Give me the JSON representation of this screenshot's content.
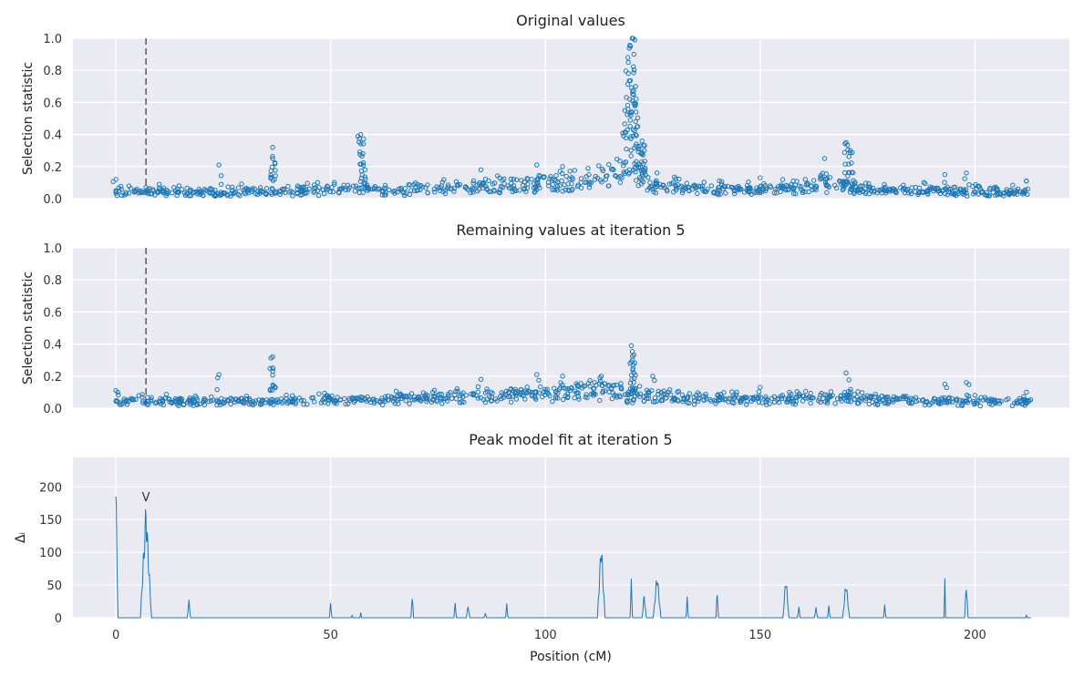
{
  "chart_data": [
    {
      "type": "scatter",
      "title": "Original values",
      "ylabel": "Selection statistic",
      "xlabel": "",
      "xlim": [
        -10,
        222
      ],
      "ylim": [
        0,
        1.0
      ],
      "yticks": [
        "0.0",
        "0.2",
        "0.4",
        "0.6",
        "0.8",
        "1.0"
      ],
      "ytick_values": [
        0,
        0.2,
        0.4,
        0.6,
        0.8,
        1.0
      ],
      "xtick_values": [
        0,
        50,
        100,
        150,
        200
      ],
      "show_xtick_labels": false,
      "marker_line_x": 7,
      "grid": true,
      "color": "#1f77b4",
      "baseline": [
        [
          0,
          0.03
        ],
        [
          5,
          0.03
        ],
        [
          10,
          0.03
        ],
        [
          20,
          0.03
        ],
        [
          30,
          0.03
        ],
        [
          40,
          0.035
        ],
        [
          50,
          0.04
        ],
        [
          54,
          0.05
        ],
        [
          58,
          0.04
        ],
        [
          65,
          0.035
        ],
        [
          75,
          0.05
        ],
        [
          85,
          0.06
        ],
        [
          95,
          0.07
        ],
        [
          105,
          0.09
        ],
        [
          115,
          0.12
        ],
        [
          118,
          0.15
        ],
        [
          122,
          0.12
        ],
        [
          125,
          0.06
        ],
        [
          135,
          0.05
        ],
        [
          150,
          0.04
        ],
        [
          160,
          0.06
        ],
        [
          165,
          0.08
        ],
        [
          170,
          0.06
        ],
        [
          175,
          0.04
        ],
        [
          190,
          0.035
        ],
        [
          205,
          0.03
        ],
        [
          213,
          0.03
        ]
      ],
      "peaks": [
        [
          0,
          0.12
        ],
        [
          7,
          0.07
        ],
        [
          24,
          0.21
        ],
        [
          36.5,
          0.32
        ],
        [
          36.5,
          0.25
        ],
        [
          57,
          0.4
        ],
        [
          57.5,
          0.28
        ],
        [
          58,
          0.18
        ],
        [
          85,
          0.18
        ],
        [
          98,
          0.21
        ],
        [
          104,
          0.2
        ],
        [
          118.5,
          0.55
        ],
        [
          119.3,
          0.85
        ],
        [
          119.8,
          0.95
        ],
        [
          120.2,
          1.0
        ],
        [
          120.6,
          0.9
        ],
        [
          121,
          0.7
        ],
        [
          121.5,
          0.45
        ],
        [
          122.5,
          0.36
        ],
        [
          123,
          0.3
        ],
        [
          126,
          0.16
        ],
        [
          150,
          0.13
        ],
        [
          165,
          0.25
        ],
        [
          170,
          0.35
        ],
        [
          171,
          0.3
        ],
        [
          193,
          0.15
        ],
        [
          198,
          0.16
        ],
        [
          212,
          0.11
        ]
      ]
    },
    {
      "type": "scatter",
      "title": "Remaining values at iteration 5",
      "ylabel": "Selection statistic",
      "xlabel": "",
      "xlim": [
        -10,
        222
      ],
      "ylim": [
        0,
        1.0
      ],
      "yticks": [
        "0.0",
        "0.2",
        "0.4",
        "0.6",
        "0.8",
        "1.0"
      ],
      "ytick_values": [
        0,
        0.2,
        0.4,
        0.6,
        0.8,
        1.0
      ],
      "xtick_values": [
        0,
        50,
        100,
        150,
        200
      ],
      "show_xtick_labels": false,
      "marker_line_x": 7,
      "grid": true,
      "color": "#1f77b4",
      "baseline": [
        [
          0,
          0.03
        ],
        [
          10,
          0.03
        ],
        [
          20,
          0.03
        ],
        [
          30,
          0.03
        ],
        [
          40,
          0.035
        ],
        [
          50,
          0.04
        ],
        [
          60,
          0.035
        ],
        [
          75,
          0.05
        ],
        [
          85,
          0.06
        ],
        [
          95,
          0.07
        ],
        [
          105,
          0.08
        ],
        [
          115,
          0.09
        ],
        [
          120,
          0.06
        ],
        [
          125,
          0.07
        ],
        [
          135,
          0.05
        ],
        [
          150,
          0.04
        ],
        [
          160,
          0.05
        ],
        [
          170,
          0.05
        ],
        [
          180,
          0.04
        ],
        [
          195,
          0.03
        ],
        [
          213,
          0.03
        ]
      ],
      "peaks": [
        [
          0,
          0.11
        ],
        [
          24,
          0.21
        ],
        [
          36.5,
          0.32
        ],
        [
          36.5,
          0.25
        ],
        [
          57,
          0.07
        ],
        [
          85,
          0.18
        ],
        [
          98,
          0.21
        ],
        [
          104,
          0.2
        ],
        [
          113,
          0.2
        ],
        [
          120,
          0.39
        ],
        [
          120.3,
          0.3
        ],
        [
          120.6,
          0.22
        ],
        [
          125,
          0.2
        ],
        [
          150,
          0.13
        ],
        [
          170,
          0.22
        ],
        [
          193,
          0.15
        ],
        [
          198,
          0.16
        ],
        [
          212,
          0.1
        ]
      ]
    },
    {
      "type": "line",
      "title": "Peak model fit at iteration 5",
      "ylabel": "Δᵢ",
      "xlabel": "Position (cM)",
      "xlim": [
        -10,
        222
      ],
      "ylim": [
        0,
        245
      ],
      "yticks": [
        "0",
        "50",
        "100",
        "150",
        "200"
      ],
      "ytick_values": [
        0,
        50,
        100,
        150,
        200
      ],
      "xticks": [
        "0",
        "50",
        "100",
        "150",
        "200"
      ],
      "xtick_values": [
        0,
        50,
        100,
        150,
        200
      ],
      "show_xtick_labels": true,
      "annotation": {
        "text": "V",
        "x": 7,
        "y": 185
      },
      "grid": true,
      "color": "#1f77b4",
      "spikes": [
        [
          0,
          218,
          0.5
        ],
        [
          7,
          180,
          1.3
        ],
        [
          17,
          28,
          0.4
        ],
        [
          50,
          25,
          0.3
        ],
        [
          55,
          5,
          0.2
        ],
        [
          57,
          10,
          0.2
        ],
        [
          69,
          41,
          0.3
        ],
        [
          79,
          25,
          0.3
        ],
        [
          82,
          22,
          0.4
        ],
        [
          86,
          8,
          0.3
        ],
        [
          91,
          22,
          0.3
        ],
        [
          113,
          124,
          0.9
        ],
        [
          120,
          60,
          0.3
        ],
        [
          123,
          38,
          0.5
        ],
        [
          126,
          72,
          0.9
        ],
        [
          133,
          33,
          0.3
        ],
        [
          140,
          48,
          0.3
        ],
        [
          156,
          68,
          0.7
        ],
        [
          159,
          20,
          0.3
        ],
        [
          163,
          16,
          0.4
        ],
        [
          166,
          21,
          0.3
        ],
        [
          170,
          59,
          0.8
        ],
        [
          179,
          21,
          0.3
        ],
        [
          193,
          61,
          0.2
        ],
        [
          198,
          59,
          0.4
        ],
        [
          212,
          5,
          0.2
        ]
      ]
    }
  ]
}
